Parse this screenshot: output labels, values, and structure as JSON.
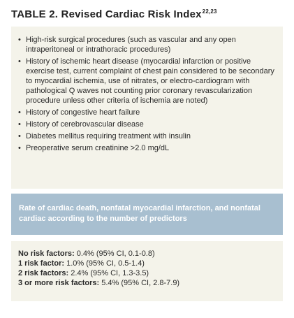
{
  "title": {
    "prefix": "TABLE 2.",
    "text": " Revised Cardiac Risk Index",
    "refs": "22,23"
  },
  "criteria": [
    "High-risk surgical procedures (such as vascular and any open intraperitoneal or intrathoracic procedures)",
    "History of ischemic heart disease (myocardial infarction or positive exercise test, current complaint of chest pain considered to be secondary to myocardial ischemia, use of nitrates, or electro-cardiogram with pathological Q waves not counting prior coronary revascularization procedure unless other criteria of ischemia are noted)",
    "History of congestive heart failure",
    "History of cerebrovascular disease",
    "Diabetes mellitus requiring treatment with insulin",
    "Preoperative serum creatinine >2.0 mg/dL"
  ],
  "bullet": "•",
  "band": {
    "text": "Rate of cardiac death, nonfatal myocardial infarction, and nonfatal cardiac according to the number of predictors"
  },
  "risks": [
    {
      "label": "No risk factors:",
      "value": " 0.4% (95% CI, 0.1-0.8)"
    },
    {
      "label": "1 risk factor:",
      "value": " 1.0% (95% CI, 0.5-1.4)"
    },
    {
      "label": "2 risk factors:",
      "value": " 2.4% (95% CI, 1.3-3.5)"
    },
    {
      "label": "3 or more risk factors:",
      "value": " 5.4% (95% CI, 2.8-7.9)"
    }
  ]
}
